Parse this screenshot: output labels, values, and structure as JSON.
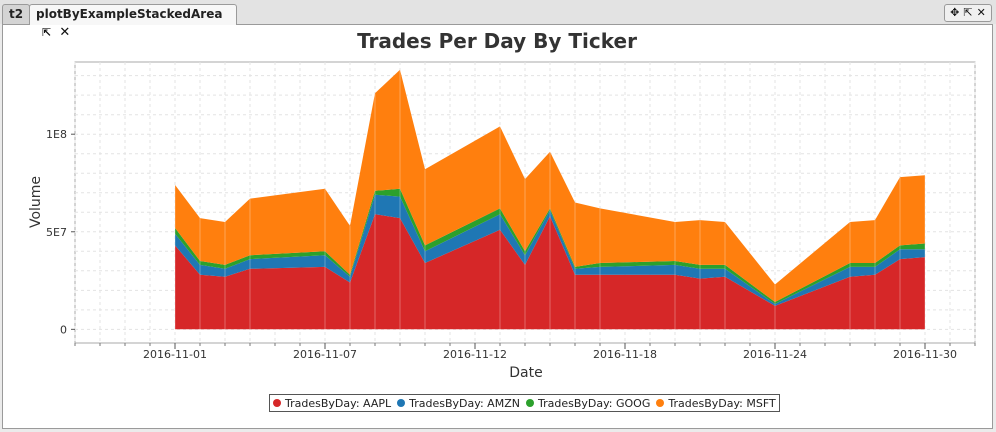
{
  "tabs": [
    {
      "label": "t2"
    },
    {
      "label": "plotByExampleStackedArea"
    }
  ],
  "colors": {
    "aapl": "#d62728",
    "amzn": "#1f77b4",
    "goog": "#2ca02c",
    "msft": "#ff7f0e"
  },
  "chart_data": {
    "type": "area",
    "stacked": true,
    "title": "Trades Per Day By Ticker",
    "xlabel": "Date",
    "ylabel": "Volume",
    "xlim": [
      "2016-10-28",
      "2016-12-03"
    ],
    "ylim": [
      -7000000,
      137000000
    ],
    "yticks": [
      0,
      50000000,
      100000000
    ],
    "ytick_labels": [
      "0",
      "5E7",
      "1E8"
    ],
    "xticks": [
      "2016-11-01",
      "2016-11-07",
      "2016-11-13",
      "2016-11-19",
      "2016-11-25",
      "2016-12-01"
    ],
    "xtick_labels": [
      "2016-11-01",
      "2016-11-07",
      "2016-11-12",
      "2016-11-18",
      "2016-11-24",
      "2016-11-30"
    ],
    "grid": true,
    "legend_position": "bottom",
    "x": [
      "2016-11-01",
      "2016-11-02",
      "2016-11-03",
      "2016-11-04",
      "2016-11-07",
      "2016-11-08",
      "2016-11-09",
      "2016-11-10",
      "2016-11-11",
      "2016-11-14",
      "2016-11-15",
      "2016-11-16",
      "2016-11-17",
      "2016-11-18",
      "2016-11-21",
      "2016-11-22",
      "2016-11-23",
      "2016-11-25",
      "2016-11-28",
      "2016-11-29",
      "2016-11-30",
      "2016-12-01"
    ],
    "series": [
      {
        "name": "TradesByDay: AAPL",
        "values": [
          43000000,
          28000000,
          27000000,
          31000000,
          32000000,
          24000000,
          59000000,
          57000000,
          34000000,
          51000000,
          33000000,
          58000000,
          28000000,
          28000000,
          28000000,
          26000000,
          27000000,
          12000000,
          27000000,
          28000000,
          36000000,
          37000000
        ]
      },
      {
        "name": "TradesByDay: AMZN",
        "values": [
          6000000,
          5000000,
          4000000,
          5000000,
          6000000,
          3000000,
          10000000,
          11000000,
          6000000,
          8000000,
          5000000,
          3000000,
          3000000,
          4000000,
          5000000,
          5000000,
          4000000,
          1000000,
          5000000,
          4000000,
          5000000,
          4000000
        ]
      },
      {
        "name": "TradesByDay: GOOG",
        "values": [
          3000000,
          2000000,
          2000000,
          2000000,
          2000000,
          1000000,
          2000000,
          4000000,
          3000000,
          3000000,
          2000000,
          1000000,
          1000000,
          2000000,
          2000000,
          2000000,
          2000000,
          1000000,
          2000000,
          2000000,
          2000000,
          3000000
        ]
      },
      {
        "name": "TradesByDay: MSFT",
        "values": [
          22000000,
          22000000,
          22000000,
          29000000,
          32000000,
          25000000,
          50000000,
          61000000,
          39000000,
          42000000,
          37000000,
          29000000,
          33000000,
          28000000,
          20000000,
          23000000,
          22000000,
          9000000,
          21000000,
          22000000,
          35000000,
          35000000
        ]
      }
    ]
  }
}
